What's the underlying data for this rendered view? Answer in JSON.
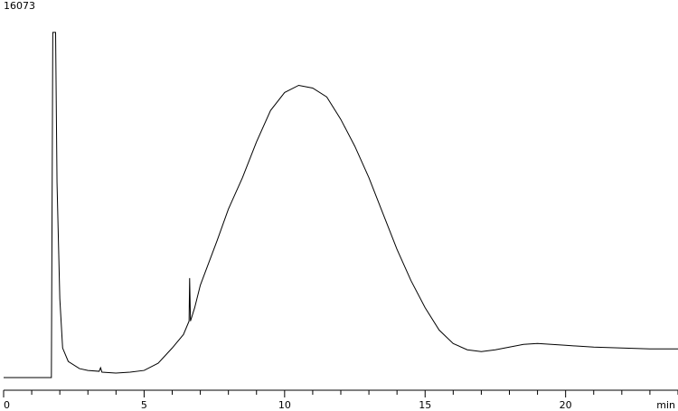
{
  "chart_data": {
    "type": "line",
    "x_label": "min",
    "x": [
      0,
      1.7,
      1.75,
      1.85,
      1.9,
      2.0,
      2.1,
      2.3,
      2.7,
      3.0,
      3.4,
      3.45,
      3.5,
      4.0,
      4.5,
      5.0,
      5.5,
      6.0,
      6.4,
      6.6,
      6.62,
      6.65,
      6.8,
      7.0,
      7.3,
      7.6,
      8.0,
      8.5,
      9.0,
      9.5,
      10.0,
      10.5,
      11.0,
      11.5,
      12.0,
      12.5,
      13.0,
      13.5,
      14.0,
      14.5,
      15.0,
      15.5,
      16.0,
      16.5,
      17.0,
      17.5,
      18.0,
      18.5,
      19.0,
      19.5,
      20.0,
      21.0,
      22.0,
      23.0,
      24.0
    ],
    "series": [
      {
        "color": "#000000",
        "values": [
          0,
          0,
          15951,
          15951,
          9032,
          3646,
          1367,
          746,
          414,
          331,
          290,
          456,
          249,
          207,
          249,
          331,
          663,
          1367,
          1989,
          2610,
          4599,
          2610,
          3232,
          4267,
          5303,
          6339,
          7789,
          9239,
          10896,
          12346,
          13175,
          13506,
          13382,
          12968,
          11932,
          10689,
          9239,
          7582,
          5925,
          4474,
          3232,
          2196,
          1574,
          1284,
          1201,
          1284,
          1409,
          1533,
          1574,
          1533,
          1491,
          1409,
          1367,
          1326,
          1326
        ]
      }
    ],
    "xlim": [
      0,
      24
    ],
    "xticks": [
      0,
      5,
      10,
      15,
      20
    ],
    "xminorticks": [
      1,
      2,
      3,
      4,
      6,
      7,
      8,
      9,
      11,
      12,
      13,
      14,
      16,
      17,
      18,
      19,
      21,
      22,
      23,
      24
    ],
    "ylim": [
      0,
      16073
    ],
    "yticks": [
      16073
    ]
  }
}
